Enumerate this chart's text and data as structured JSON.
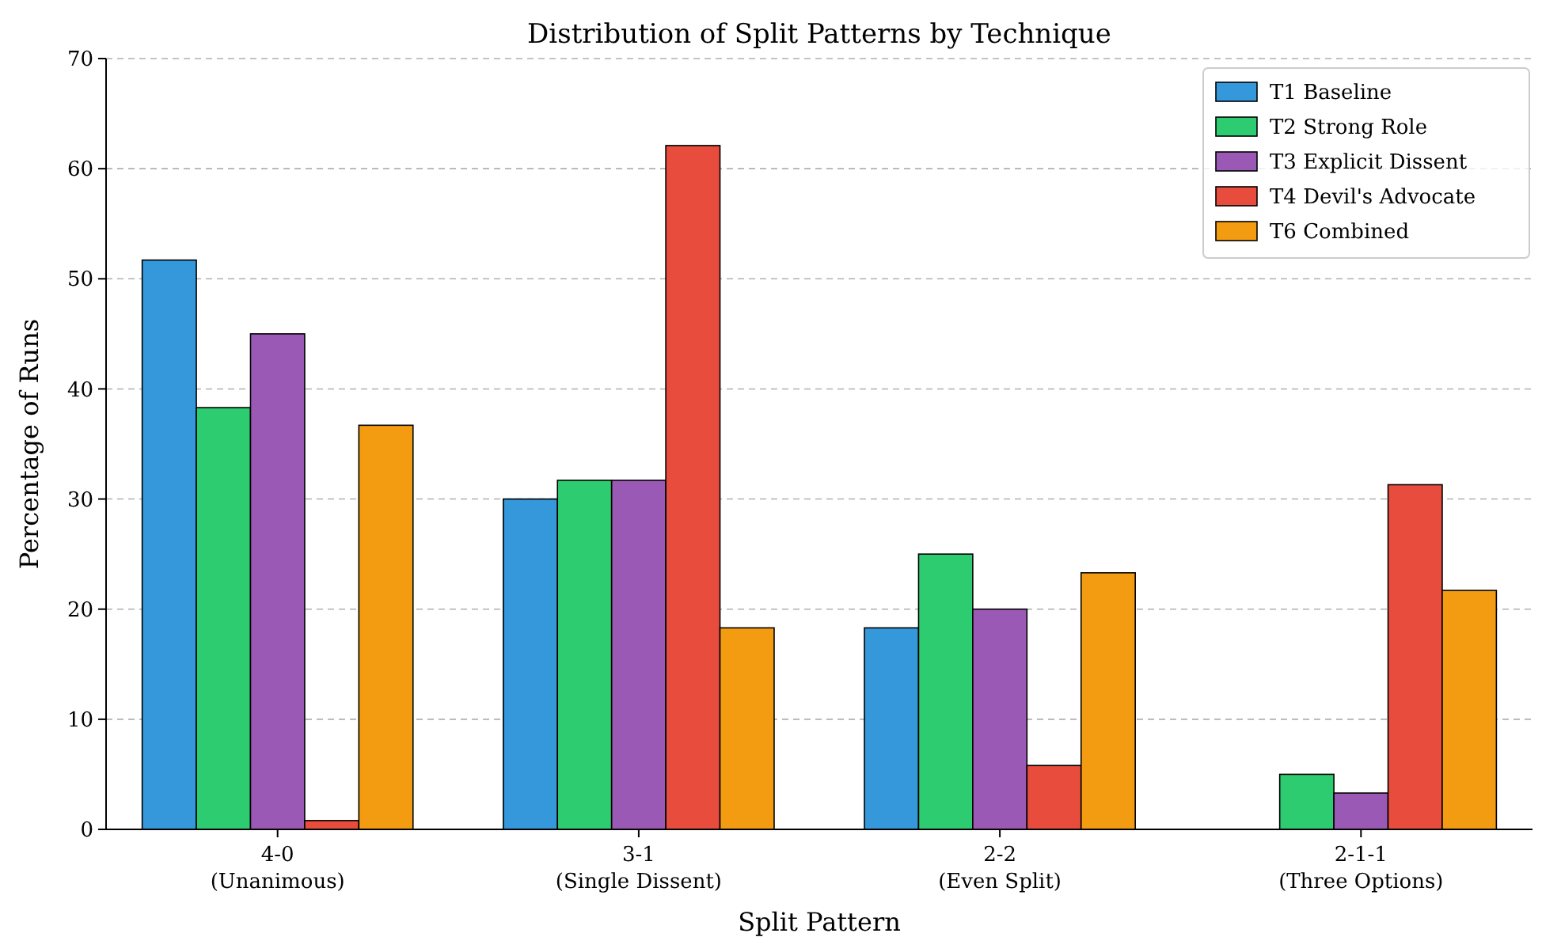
{
  "chart_data": {
    "type": "bar",
    "title": "Distribution of Split Patterns by Technique",
    "xlabel": "Split Pattern",
    "ylabel": "Percentage of Runs",
    "categories": [
      "4-0\n(Unanimous)",
      "3-1\n(Single Dissent)",
      "2-2\n(Even Split)",
      "2-1-1\n(Three Options)"
    ],
    "series": [
      {
        "name": "T1 Baseline",
        "color": "#3498db",
        "values": [
          51.7,
          30.0,
          18.3,
          0
        ]
      },
      {
        "name": "T2 Strong Role",
        "color": "#2ecc71",
        "values": [
          38.3,
          31.7,
          25.0,
          5.0
        ]
      },
      {
        "name": "T3 Explicit Dissent",
        "color": "#9b59b6",
        "values": [
          45.0,
          31.7,
          20.0,
          3.3
        ]
      },
      {
        "name": "T4 Devil's Advocate",
        "color": "#e74c3c",
        "values": [
          0.8,
          62.1,
          5.8,
          31.3
        ]
      },
      {
        "name": "T6 Combined",
        "color": "#f39c12",
        "values": [
          36.7,
          18.3,
          23.3,
          21.7
        ]
      }
    ],
    "ylim": [
      0,
      70
    ],
    "yticks": [
      0,
      10,
      20,
      30,
      40,
      50,
      60,
      70
    ],
    "grid": "y",
    "legend": "top right"
  }
}
